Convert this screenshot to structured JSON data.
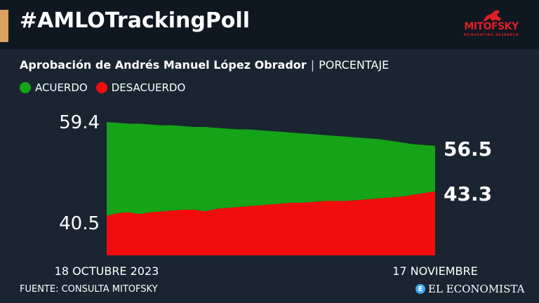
{
  "header": {
    "title": "#AMLOTrackingPoll",
    "logo_name": "MITOFSKY",
    "logo_tagline": "REINVENTING RESEARCH"
  },
  "subtitle": {
    "main": "Aprobación de Andrés Manuel López Obrador",
    "separator": "|",
    "unit": "PORCENTAJE"
  },
  "legend": {
    "acuerdo": "ACUERDO",
    "desacuerdo": "DESACUERDO"
  },
  "colors": {
    "background": "#1a2531",
    "header_bg": "#0f1720",
    "accent": "#d9a25f",
    "acuerdo": "#15a317",
    "desacuerdo": "#f20d0d",
    "logo": "#e01e25",
    "brand_icon": "#3ea6ff"
  },
  "chart_data": {
    "type": "area",
    "x_start_label": "18 OCTUBRE 2023",
    "x_end_label": "17 NOVIEMBRE",
    "series": [
      {
        "name": "ACUERDO",
        "color": "#15a317",
        "start_label": "59.4",
        "end_label": "56.5",
        "values": [
          59.4,
          59.3,
          59.2,
          59.2,
          59.1,
          59.0,
          59.0,
          58.9,
          58.8,
          58.8,
          58.7,
          58.6,
          58.5,
          58.5,
          58.4,
          58.3,
          58.2,
          58.1,
          58.0,
          57.9,
          57.8,
          57.7,
          57.6,
          57.5,
          57.4,
          57.3,
          57.1,
          56.9,
          56.7,
          56.6,
          56.5
        ]
      },
      {
        "name": "DESACUERDO",
        "color": "#f20d0d",
        "start_label": "40.5",
        "end_label": "43.3",
        "values": [
          40.5,
          40.8,
          40.9,
          40.7,
          40.9,
          41.0,
          41.1,
          41.2,
          41.2,
          41.0,
          41.3,
          41.4,
          41.5,
          41.6,
          41.7,
          41.8,
          41.9,
          42.0,
          42.0,
          42.1,
          42.2,
          42.2,
          42.2,
          42.3,
          42.4,
          42.5,
          42.6,
          42.7,
          42.9,
          43.1,
          43.3
        ]
      }
    ]
  },
  "footer": {
    "source": "FUENTE: CONSULTA MITOFSKY",
    "brand_icon": "E",
    "brand": "EL ECONOMISTA"
  }
}
